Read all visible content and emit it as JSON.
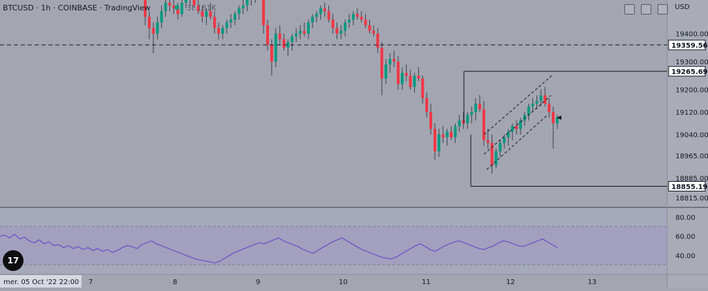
{
  "header": {
    "symbol": "BTCUSD · 1h · COINBASE · TradingView",
    "volume": "3t 161K"
  },
  "currency_label": "USD",
  "logo_text": "17",
  "colors": {
    "background": "#a3a6b1",
    "up": "#089981",
    "down": "#f23645",
    "rsi_line": "#6a4cc8",
    "rsi_band": "#9a92c2"
  },
  "chart_data": [
    {
      "type": "candlestick",
      "symbol": "BTCUSD",
      "interval": "1h",
      "exchange": "COINBASE",
      "y_axis": {
        "ticks": [
          19400.0,
          19300.0,
          19200.0,
          19120.0,
          19040.0,
          18965.0,
          18885.0,
          18815.0
        ],
        "range": [
          18780,
          19520
        ]
      },
      "x_axis": {
        "labels": [
          "mer. 05 Oct '22   22:00",
          "7",
          "8",
          "9",
          "10",
          "11",
          "12",
          "13"
        ]
      },
      "price_labels": [
        {
          "value": 19359.56,
          "style": "dashed"
        },
        {
          "value": 19265.69,
          "style": "solid"
        },
        {
          "value": 18855.19,
          "style": "solid"
        }
      ],
      "ohlc_sketch": [
        [
          19540,
          19560,
          19430,
          19460
        ],
        [
          19460,
          19480,
          19380,
          19420
        ],
        [
          19420,
          19440,
          19330,
          19400
        ],
        [
          19400,
          19460,
          19380,
          19440
        ],
        [
          19440,
          19500,
          19420,
          19480
        ],
        [
          19480,
          19530,
          19460,
          19510
        ],
        [
          19510,
          19540,
          19480,
          19500
        ],
        [
          19500,
          19520,
          19470,
          19490
        ],
        [
          19490,
          19510,
          19450,
          19470
        ],
        [
          19470,
          19520,
          19460,
          19510
        ],
        [
          19510,
          19540,
          19490,
          19530
        ],
        [
          19530,
          19550,
          19500,
          19520
        ],
        [
          19520,
          19540,
          19490,
          19500
        ],
        [
          19500,
          19530,
          19470,
          19480
        ],
        [
          19480,
          19500,
          19440,
          19460
        ],
        [
          19460,
          19490,
          19430,
          19480
        ],
        [
          19480,
          19510,
          19450,
          19460
        ],
        [
          19460,
          19480,
          19400,
          19420
        ],
        [
          19420,
          19440,
          19380,
          19400
        ],
        [
          19400,
          19430,
          19380,
          19420
        ],
        [
          19420,
          19450,
          19400,
          19440
        ],
        [
          19440,
          19470,
          19420,
          19450
        ],
        [
          19450,
          19480,
          19430,
          19470
        ],
        [
          19470,
          19500,
          19450,
          19490
        ],
        [
          19490,
          19520,
          19470,
          19500
        ],
        [
          19500,
          19530,
          19480,
          19520
        ],
        [
          19520,
          19540,
          19500,
          19530
        ],
        [
          19530,
          19560,
          19510,
          19550
        ],
        [
          19550,
          19560,
          19520,
          19540
        ],
        [
          19540,
          19550,
          19400,
          19430
        ],
        [
          19430,
          19450,
          19340,
          19360
        ],
        [
          19360,
          19380,
          19250,
          19300
        ],
        [
          19300,
          19420,
          19280,
          19400
        ],
        [
          19400,
          19430,
          19360,
          19380
        ],
        [
          19380,
          19400,
          19340,
          19350
        ],
        [
          19350,
          19380,
          19320,
          19370
        ],
        [
          19370,
          19400,
          19340,
          19390
        ],
        [
          19390,
          19420,
          19370,
          19400
        ],
        [
          19400,
          19430,
          19380,
          19410
        ],
        [
          19410,
          19440,
          19390,
          19400
        ],
        [
          19400,
          19450,
          19380,
          19440
        ],
        [
          19440,
          19470,
          19420,
          19460
        ],
        [
          19460,
          19480,
          19440,
          19470
        ],
        [
          19470,
          19500,
          19450,
          19490
        ],
        [
          19490,
          19510,
          19460,
          19480
        ],
        [
          19480,
          19500,
          19440,
          19450
        ],
        [
          19450,
          19470,
          19400,
          19420
        ],
        [
          19420,
          19440,
          19380,
          19400
        ],
        [
          19400,
          19430,
          19380,
          19410
        ],
        [
          19410,
          19450,
          19390,
          19440
        ],
        [
          19440,
          19470,
          19420,
          19450
        ],
        [
          19450,
          19480,
          19430,
          19470
        ],
        [
          19470,
          19490,
          19450,
          19460
        ],
        [
          19460,
          19480,
          19440,
          19450
        ],
        [
          19450,
          19470,
          19420,
          19430
        ],
        [
          19430,
          19450,
          19400,
          19410
        ],
        [
          19410,
          19430,
          19390,
          19400
        ],
        [
          19400,
          19420,
          19330,
          19350
        ],
        [
          19350,
          19370,
          19180,
          19240
        ],
        [
          19240,
          19310,
          19220,
          19290
        ],
        [
          19290,
          19330,
          19260,
          19310
        ],
        [
          19310,
          19340,
          19280,
          19300
        ],
        [
          19300,
          19320,
          19200,
          19220
        ],
        [
          19220,
          19280,
          19200,
          19260
        ],
        [
          19260,
          19290,
          19230,
          19250
        ],
        [
          19250,
          19270,
          19200,
          19210
        ],
        [
          19210,
          19260,
          19190,
          19250
        ],
        [
          19250,
          19280,
          19230,
          19240
        ],
        [
          19240,
          19250,
          19150,
          19170
        ],
        [
          19170,
          19190,
          19100,
          19120
        ],
        [
          19120,
          19150,
          19040,
          19060
        ],
        [
          19060,
          19080,
          18950,
          18980
        ],
        [
          18980,
          19060,
          18960,
          19040
        ],
        [
          19040,
          19070,
          19010,
          19030
        ],
        [
          19030,
          19060,
          19000,
          19050
        ],
        [
          19050,
          19070,
          19020,
          19030
        ],
        [
          19030,
          19080,
          19010,
          19070
        ],
        [
          19070,
          19110,
          19050,
          19090
        ],
        [
          19090,
          19120,
          19060,
          19080
        ],
        [
          19080,
          19120,
          19060,
          19110
        ],
        [
          19110,
          19140,
          19080,
          19120
        ],
        [
          19120,
          19170,
          19090,
          19150
        ],
        [
          19150,
          19180,
          19120,
          19130
        ],
        [
          19130,
          19160,
          19000,
          19020
        ],
        [
          19020,
          19060,
          18990,
          19010
        ],
        [
          19010,
          19040,
          18900,
          18930
        ],
        [
          18930,
          18990,
          18920,
          18980
        ],
        [
          18980,
          19020,
          18960,
          19010
        ],
        [
          19010,
          19040,
          18990,
          19030
        ],
        [
          19030,
          19060,
          19000,
          19050
        ],
        [
          19050,
          19080,
          19020,
          19070
        ],
        [
          19070,
          19090,
          19040,
          19060
        ],
        [
          19060,
          19100,
          19040,
          19090
        ],
        [
          19090,
          19120,
          19070,
          19110
        ],
        [
          19110,
          19150,
          19090,
          19140
        ],
        [
          19140,
          19170,
          19120,
          19150
        ],
        [
          19150,
          19180,
          19130,
          19160
        ],
        [
          19160,
          19200,
          19140,
          19180
        ],
        [
          19180,
          19210,
          19140,
          19150
        ],
        [
          19150,
          19170,
          19100,
          19120
        ],
        [
          19120,
          19140,
          18990,
          19080
        ],
        [
          19080,
          19110,
          19060,
          19100
        ]
      ],
      "channel_box": {
        "high": 19265.69,
        "low": 18855.19
      },
      "last_price": 19100
    },
    {
      "type": "line",
      "name": "RSI",
      "y_axis": {
        "ticks": [
          80.0,
          60.0,
          40.0
        ],
        "range": [
          20,
          90
        ]
      },
      "bands": [
        70,
        30
      ],
      "values": [
        60,
        61,
        58,
        62,
        57,
        59,
        55,
        53,
        56,
        52,
        54,
        50,
        51,
        48,
        50,
        47,
        49,
        46,
        48,
        45,
        47,
        44,
        46,
        43,
        45,
        48,
        50,
        49,
        47,
        51,
        53,
        55,
        52,
        50,
        48,
        46,
        44,
        42,
        40,
        38,
        36,
        35,
        34,
        33,
        32,
        34,
        37,
        40,
        43,
        45,
        47,
        49,
        51,
        53,
        52,
        54,
        56,
        58,
        55,
        53,
        51,
        49,
        46,
        44,
        42,
        45,
        48,
        51,
        54,
        56,
        58,
        55,
        52,
        49,
        46,
        44,
        42,
        40,
        38,
        37,
        36,
        38,
        41,
        44,
        47,
        50,
        52,
        49,
        46,
        44,
        47,
        50,
        52,
        54,
        55,
        53,
        51,
        49,
        47,
        46,
        48,
        50,
        53,
        55,
        54,
        52,
        50,
        49,
        51,
        53,
        55,
        57,
        54,
        51,
        48
      ]
    }
  ]
}
